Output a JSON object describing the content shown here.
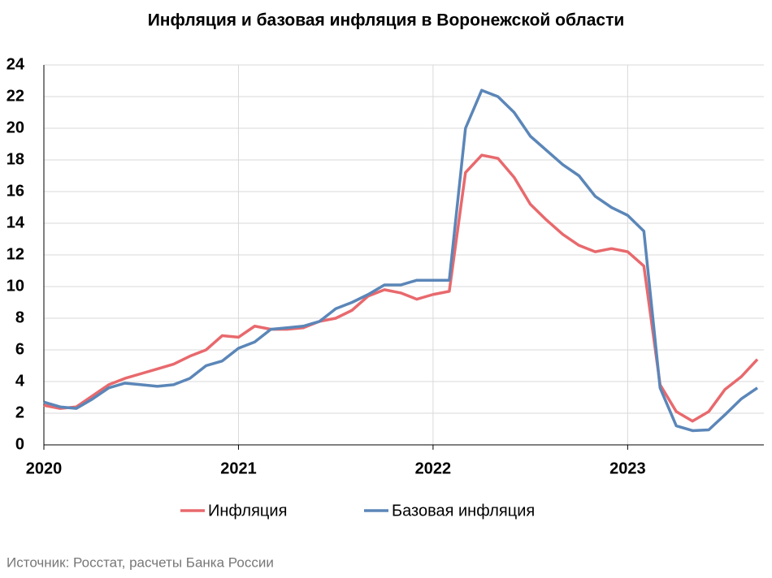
{
  "chart_data": {
    "type": "line",
    "title": "Инфляция и базовая инфляция в Воронежской области",
    "categories": [
      "2020",
      null,
      null,
      null,
      null,
      null,
      null,
      null,
      null,
      null,
      null,
      null,
      "2021",
      null,
      null,
      null,
      null,
      null,
      null,
      null,
      null,
      null,
      null,
      null,
      "2022",
      null,
      null,
      null,
      null,
      null,
      null,
      null,
      null,
      null,
      null,
      null,
      "2023",
      null,
      null,
      null,
      null,
      null,
      null,
      null,
      null
    ],
    "series": [
      {
        "name": "Инфляция",
        "color": "#e8696d",
        "values": [
          2.5,
          2.3,
          2.4,
          3.1,
          3.8,
          4.2,
          4.5,
          4.8,
          5.1,
          5.6,
          6.0,
          6.9,
          6.8,
          7.5,
          7.3,
          7.3,
          7.4,
          7.8,
          8.0,
          8.5,
          9.4,
          9.8,
          9.6,
          9.2,
          9.5,
          9.7,
          17.2,
          18.3,
          18.1,
          16.9,
          15.2,
          14.2,
          13.3,
          12.6,
          12.2,
          12.4,
          12.2,
          11.3,
          3.8,
          2.1,
          1.5,
          2.1,
          3.5,
          4.3,
          5.4
        ]
      },
      {
        "name": "Базовая инфляция",
        "color": "#5b86b8",
        "values": [
          2.7,
          2.4,
          2.3,
          2.9,
          3.6,
          3.9,
          3.8,
          3.7,
          3.8,
          4.2,
          5.0,
          5.3,
          6.1,
          6.5,
          7.3,
          7.4,
          7.5,
          7.8,
          8.6,
          9.0,
          9.5,
          10.1,
          10.1,
          10.4,
          10.4,
          10.4,
          20.0,
          22.4,
          22.0,
          21.0,
          19.5,
          18.6,
          17.7,
          17.0,
          15.7,
          15.0,
          14.5,
          13.5,
          3.6,
          1.2,
          0.9,
          0.95,
          1.9,
          2.9,
          3.6
        ]
      }
    ],
    "ylim": [
      0,
      24
    ],
    "yticks": [
      0,
      2,
      4,
      6,
      8,
      10,
      12,
      14,
      16,
      18,
      20,
      22,
      24
    ],
    "grid": true,
    "legend": "bottom",
    "source": "Источник: Росстат, расчеты Банка России"
  }
}
